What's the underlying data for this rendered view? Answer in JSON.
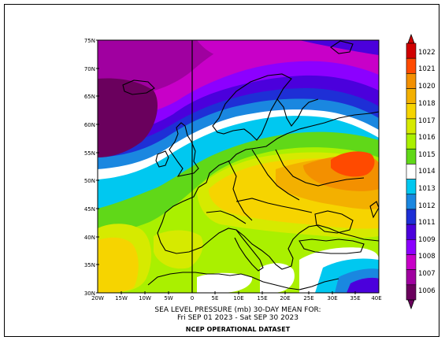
{
  "map": {
    "title_line1": "SEA LEVEL PRESSURE (mb)   30-DAY MEAN FOR:",
    "title_line2": "Fri SEP 01 2023 - Sat SEP 30 2023",
    "source": "NCEP OPERATIONAL DATASET",
    "lat_labels": [
      "75N",
      "70N",
      "65N",
      "60N",
      "55N",
      "50N",
      "45N",
      "40N",
      "35N",
      "30N"
    ],
    "lon_labels": [
      "20W",
      "15W",
      "10W",
      "5W",
      "0",
      "5E",
      "10E",
      "15E",
      "20E",
      "25E",
      "30E",
      "35E",
      "40E"
    ],
    "legend": {
      "levels": [
        "1006",
        "1007",
        "1008",
        "1009",
        "1011",
        "1012",
        "1013",
        "1014",
        "1015",
        "1016",
        "1017",
        "1018",
        "1020",
        "1021",
        "1022"
      ],
      "colors": [
        "#6a005d",
        "#a000a0",
        "#c800c8",
        "#8c00ff",
        "#4b00dc",
        "#1e2fd6",
        "#1a87e0",
        "#00c8f0",
        "#ffffff",
        "#60d818",
        "#aaf000",
        "#d6ea00",
        "#f6d400",
        "#f3b000",
        "#f39000",
        "#ff4a00",
        "#d00000"
      ]
    },
    "colors": {
      "prime_meridian": "#000000",
      "coastline": "#000000"
    }
  }
}
